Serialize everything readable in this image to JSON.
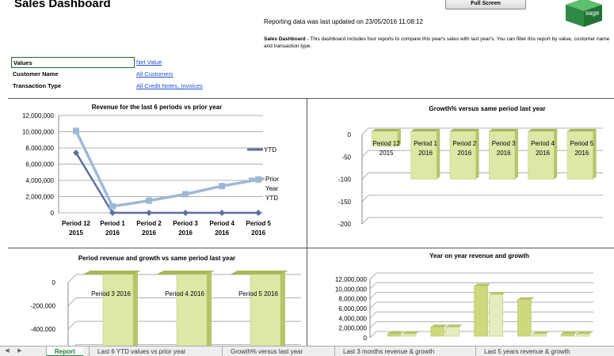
{
  "header": {
    "title": "Sales Dashboard",
    "fullscreen_label": "Full Screen",
    "logo_text": "sage",
    "updated_text": "Reporting data was last updated on 23/05/2016 11:08:12",
    "desc_bold": "Sales Dashboard",
    "desc_text": " - This dashboard includes four reports to compare this year's sales with last year's. You can filter this report by value, customer name and transaction type."
  },
  "filters": [
    {
      "label": "Values",
      "value": "Net Value"
    },
    {
      "label": "Customer Name",
      "value": "All Customers"
    },
    {
      "label": "Transaction Type",
      "value": "All Credit Notes, Invoices"
    }
  ],
  "colors": {
    "ytd": "#5f6fa0",
    "prior": "#9fb8d6",
    "bar": "#dde7a6",
    "bar_dark": "#b7c468",
    "grid": "#b0b0b0",
    "tab_active": "#1f7a3a"
  },
  "chart_data": [
    {
      "type": "line",
      "title": "Revenue for the last 6 periods vs prior year",
      "categories": [
        "Period 12 2015",
        "Period 1 2016",
        "Period 2 2016",
        "Period 3 2016",
        "Period 4 2016",
        "Period 5 2016"
      ],
      "category_lines": [
        [
          "Period 12",
          "2015"
        ],
        [
          "Period 1",
          "2016"
        ],
        [
          "Period 2",
          "2016"
        ],
        [
          "Period 3",
          "2016"
        ],
        [
          "Period 4",
          "2016"
        ],
        [
          "Period 5",
          "2016"
        ]
      ],
      "y_ticks": [
        "0",
        "2,000,000",
        "4,000,000",
        "6,000,000",
        "8,000,000",
        "10,000,000",
        "12,000,000"
      ],
      "ylim": [
        0,
        12000000
      ],
      "series": [
        {
          "name": "YTD",
          "values": [
            7400000,
            0,
            0,
            0,
            0,
            0
          ]
        },
        {
          "name": "Prior Year YTD",
          "name_lines": [
            "Prior",
            "Year",
            "YTD"
          ],
          "values": [
            10100000,
            800000,
            1500000,
            2300000,
            3300000,
            4100000
          ]
        }
      ],
      "legend": "right"
    },
    {
      "type": "bar",
      "title": "Growth% versus same period last year",
      "categories": [
        "Period 12 2015",
        "Period 1 2016",
        "Period 2 2016",
        "Period 3 2016",
        "Period 4 2016",
        "Period 5 2016"
      ],
      "category_lines": [
        [
          "Period 12",
          "2015"
        ],
        [
          "Period 1",
          "2016"
        ],
        [
          "Period 2",
          "2016"
        ],
        [
          "Period 3",
          "2016"
        ],
        [
          "Period 4",
          "2016"
        ],
        [
          "Period 5",
          "2016"
        ]
      ],
      "y_ticks": [
        "0",
        "-50",
        "-100",
        "-150",
        "-200"
      ],
      "ylim": [
        -200,
        0
      ],
      "values": [
        -27,
        -100,
        -100,
        -100,
        -100,
        -100
      ]
    },
    {
      "type": "bar",
      "title": "Period  revenue and growth vs same period last year",
      "categories": [
        "Period 3 2016",
        "Period 4 2016",
        "Period 5 2016"
      ],
      "y_ticks": [
        "0",
        "-200,000",
        "-400,000",
        "-600,000"
      ],
      "ylim": [
        -650000,
        0
      ],
      "values": [
        -650000,
        -650000,
        -650000
      ]
    },
    {
      "type": "bar",
      "title": "Year on year revenue and growth",
      "y_ticks": [
        "0",
        "2,000,000",
        "4,000,000",
        "6,000,000",
        "8,000,000",
        "10,000,000",
        "12,000,000"
      ],
      "ylim": [
        0,
        12000000
      ],
      "series": [
        {
          "values": [
            0,
            1900000,
            10300000,
            7500000,
            0
          ]
        },
        {
          "values": [
            0,
            1900000,
            8600000,
            0,
            0
          ]
        }
      ]
    }
  ],
  "tabs": [
    "Report",
    "Last 6 YTD values vs prior year",
    "Growth% versus last year",
    "Last 3 months revenue & growth",
    "Last 5 years revenue & growth"
  ]
}
